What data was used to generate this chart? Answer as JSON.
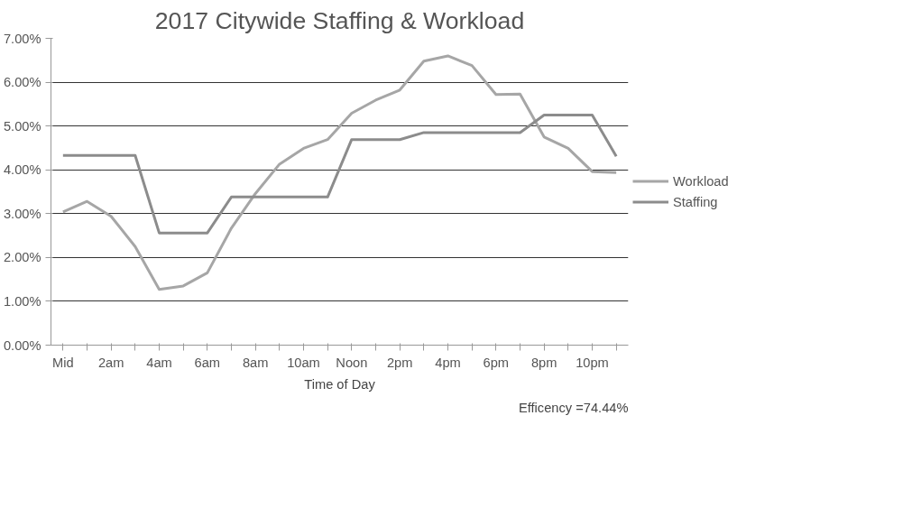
{
  "chart_data": {
    "type": "line",
    "title": "2017 Citywide Staffing & Workload",
    "xlabel": "Time of Day",
    "categories": [
      "Mid",
      null,
      "2am",
      null,
      "4am",
      null,
      "6am",
      null,
      "8am",
      null,
      "10am",
      null,
      "Noon",
      null,
      "2pm",
      null,
      "4pm",
      null,
      "6pm",
      null,
      "8pm",
      null,
      "10pm",
      null
    ],
    "series": [
      {
        "name": "Workload",
        "color": "#a6a6a6",
        "values": [
          3.04,
          3.28,
          2.94,
          2.25,
          1.27,
          1.35,
          1.65,
          2.67,
          3.46,
          4.13,
          4.49,
          4.69,
          5.29,
          5.59,
          5.82,
          6.48,
          6.6,
          6.38,
          5.72,
          5.73,
          4.75,
          4.49,
          3.96,
          3.94
        ]
      },
      {
        "name": "Staffing",
        "color": "#8c8c8c",
        "values": [
          4.33,
          4.33,
          4.33,
          4.33,
          2.56,
          2.56,
          2.56,
          3.38,
          3.38,
          3.38,
          3.38,
          3.38,
          4.69,
          4.69,
          4.69,
          4.85,
          4.85,
          4.85,
          4.85,
          4.85,
          5.25,
          5.25,
          5.25,
          4.31
        ]
      }
    ],
    "ylim": [
      0,
      7
    ],
    "yticks": [
      {
        "value": 0,
        "label": "0.00%"
      },
      {
        "value": 1,
        "label": "1.00%"
      },
      {
        "value": 2,
        "label": "2.00%"
      },
      {
        "value": 3,
        "label": "3.00%"
      },
      {
        "value": 4,
        "label": "4.00%"
      },
      {
        "value": 5,
        "label": "5.00%"
      },
      {
        "value": 6,
        "label": "6.00%"
      },
      {
        "value": 7,
        "label": "7.00%"
      }
    ],
    "grid": "y",
    "legend": "right",
    "marker": "none",
    "line_style": "solid",
    "annotations": [
      "Efficency =74.44%"
    ]
  }
}
